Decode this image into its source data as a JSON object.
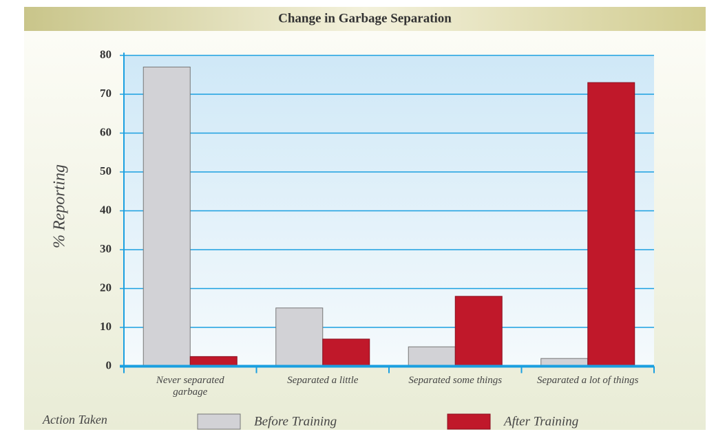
{
  "chart_data": {
    "type": "bar",
    "title": "Change in Garbage Separation",
    "x_label": "Action Taken",
    "y_label": "% Reporting",
    "categories": [
      "Never separated garbage",
      "Separated a little",
      "Separated some things",
      "Separated a lot of things"
    ],
    "series": [
      {
        "name": "Before Training",
        "color": "#d2d2d6",
        "values": [
          77,
          15,
          5,
          2
        ]
      },
      {
        "name": "After Training",
        "color": "#c0182a",
        "values": [
          2.5,
          7,
          18,
          73
        ]
      }
    ],
    "ylim": [
      0,
      80
    ],
    "yticks": [
      0,
      10,
      20,
      30,
      40,
      50,
      60,
      70,
      80
    ],
    "grid": true
  }
}
